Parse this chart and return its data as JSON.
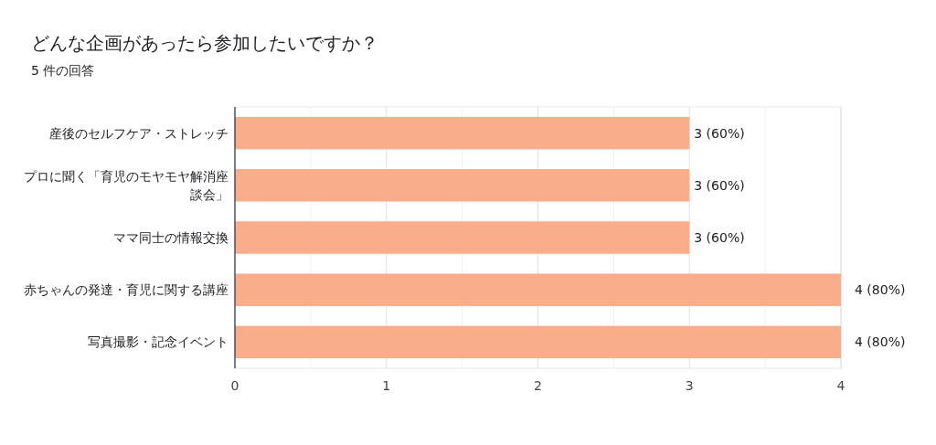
{
  "chart_data": {
    "type": "bar",
    "orientation": "horizontal",
    "title": "どんな企画があったら参加したいですか？",
    "subtitle": "5 件の回答",
    "categories": [
      "産後のセルフケア・ストレッチ",
      "プロに聞く「育児のモヤモヤ解消座談会」",
      "ママ同士の情報交換",
      "赤ちゃんの発達・育児に関する講座",
      "写真撮影・記念イベント"
    ],
    "values": [
      3,
      3,
      3,
      4,
      4
    ],
    "value_labels": [
      "3 (60%)",
      "3 (60%)",
      "3 (60%)",
      "4 (80%)",
      "4 (80%)"
    ],
    "color": "#f9ad8a",
    "xlim": [
      0,
      4
    ],
    "xticks": [
      0,
      {
        "value": 0.5,
        "label": null
      },
      1,
      {
        "value": 1.5,
        "label": null
      },
      2,
      {
        "value": 2.5,
        "label": null
      },
      3,
      {
        "value": 3.5,
        "label": null
      },
      4
    ],
    "grid": "x"
  }
}
